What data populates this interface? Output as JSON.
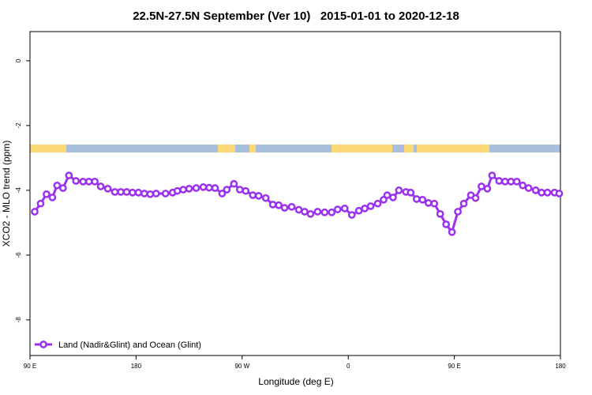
{
  "chart_data": {
    "type": "line",
    "title": "22.5N-27.5N September (Ver 10)   2015-01-01 to 2020-12-18",
    "x_label": "Longitude (deg E)",
    "y_label": "XCO2 - MLO trend (ppm)",
    "xlim": [
      90,
      540
    ],
    "ylim": [
      -9.1,
      0.9
    ],
    "xticks": [
      {
        "value": 90,
        "label": "90 E"
      },
      180,
      {
        "value": 270,
        "label": "90 W"
      },
      {
        "value": 360,
        "label": "0"
      },
      {
        "value": 450,
        "label": "90 E"
      },
      {
        "value": 540,
        "label": "180"
      }
    ],
    "yticks": [
      0,
      -2,
      -4,
      -6,
      -8
    ],
    "legend": "bottom-left",
    "series": [
      {
        "name": "Land (Nadir&Glint) and Ocean (Glint)",
        "color": "#9b30f0",
        "x": [
          94,
          99,
          104,
          109,
          113,
          118,
          123,
          129,
          135,
          140,
          145,
          150,
          156,
          162,
          167,
          172,
          177,
          182,
          187,
          192,
          197,
          205,
          211,
          215,
          220,
          225,
          231,
          237,
          242,
          247,
          253,
          257,
          263,
          268,
          273,
          279,
          284,
          290,
          296,
          301,
          306,
          312,
          318,
          323,
          328,
          334,
          340,
          346,
          351,
          357,
          363,
          369,
          374,
          379,
          385,
          390,
          393,
          398,
          403,
          409,
          413,
          418,
          423,
          428,
          433,
          438,
          443,
          448,
          453,
          458,
          464,
          468,
          473,
          478,
          482,
          488,
          493,
          498,
          503,
          508,
          513,
          519,
          524,
          529,
          535,
          539
        ],
        "values": [
          -4.66,
          -4.41,
          -4.12,
          -4.22,
          -3.85,
          -3.93,
          -3.54,
          -3.71,
          -3.73,
          -3.73,
          -3.73,
          -3.88,
          -3.95,
          -4.05,
          -4.05,
          -4.05,
          -4.07,
          -4.07,
          -4.1,
          -4.12,
          -4.1,
          -4.1,
          -4.07,
          -4.02,
          -3.98,
          -3.95,
          -3.93,
          -3.9,
          -3.92,
          -3.93,
          -4.1,
          -3.98,
          -3.8,
          -3.98,
          -4.02,
          -4.15,
          -4.17,
          -4.24,
          -4.44,
          -4.46,
          -4.54,
          -4.51,
          -4.6,
          -4.66,
          -4.73,
          -4.66,
          -4.68,
          -4.68,
          -4.59,
          -4.56,
          -4.76,
          -4.63,
          -4.56,
          -4.49,
          -4.41,
          -4.29,
          -4.15,
          -4.22,
          -4.0,
          -4.05,
          -4.07,
          -4.27,
          -4.29,
          -4.39,
          -4.41,
          -4.73,
          -5.05,
          -5.29,
          -4.66,
          -4.41,
          -4.15,
          -4.24,
          -3.88,
          -3.95,
          -3.54,
          -3.71,
          -3.73,
          -3.73,
          -3.73,
          -3.85,
          -3.93,
          -4.0,
          -4.07,
          -4.07,
          -4.07,
          -4.1
        ]
      }
    ]
  }
}
